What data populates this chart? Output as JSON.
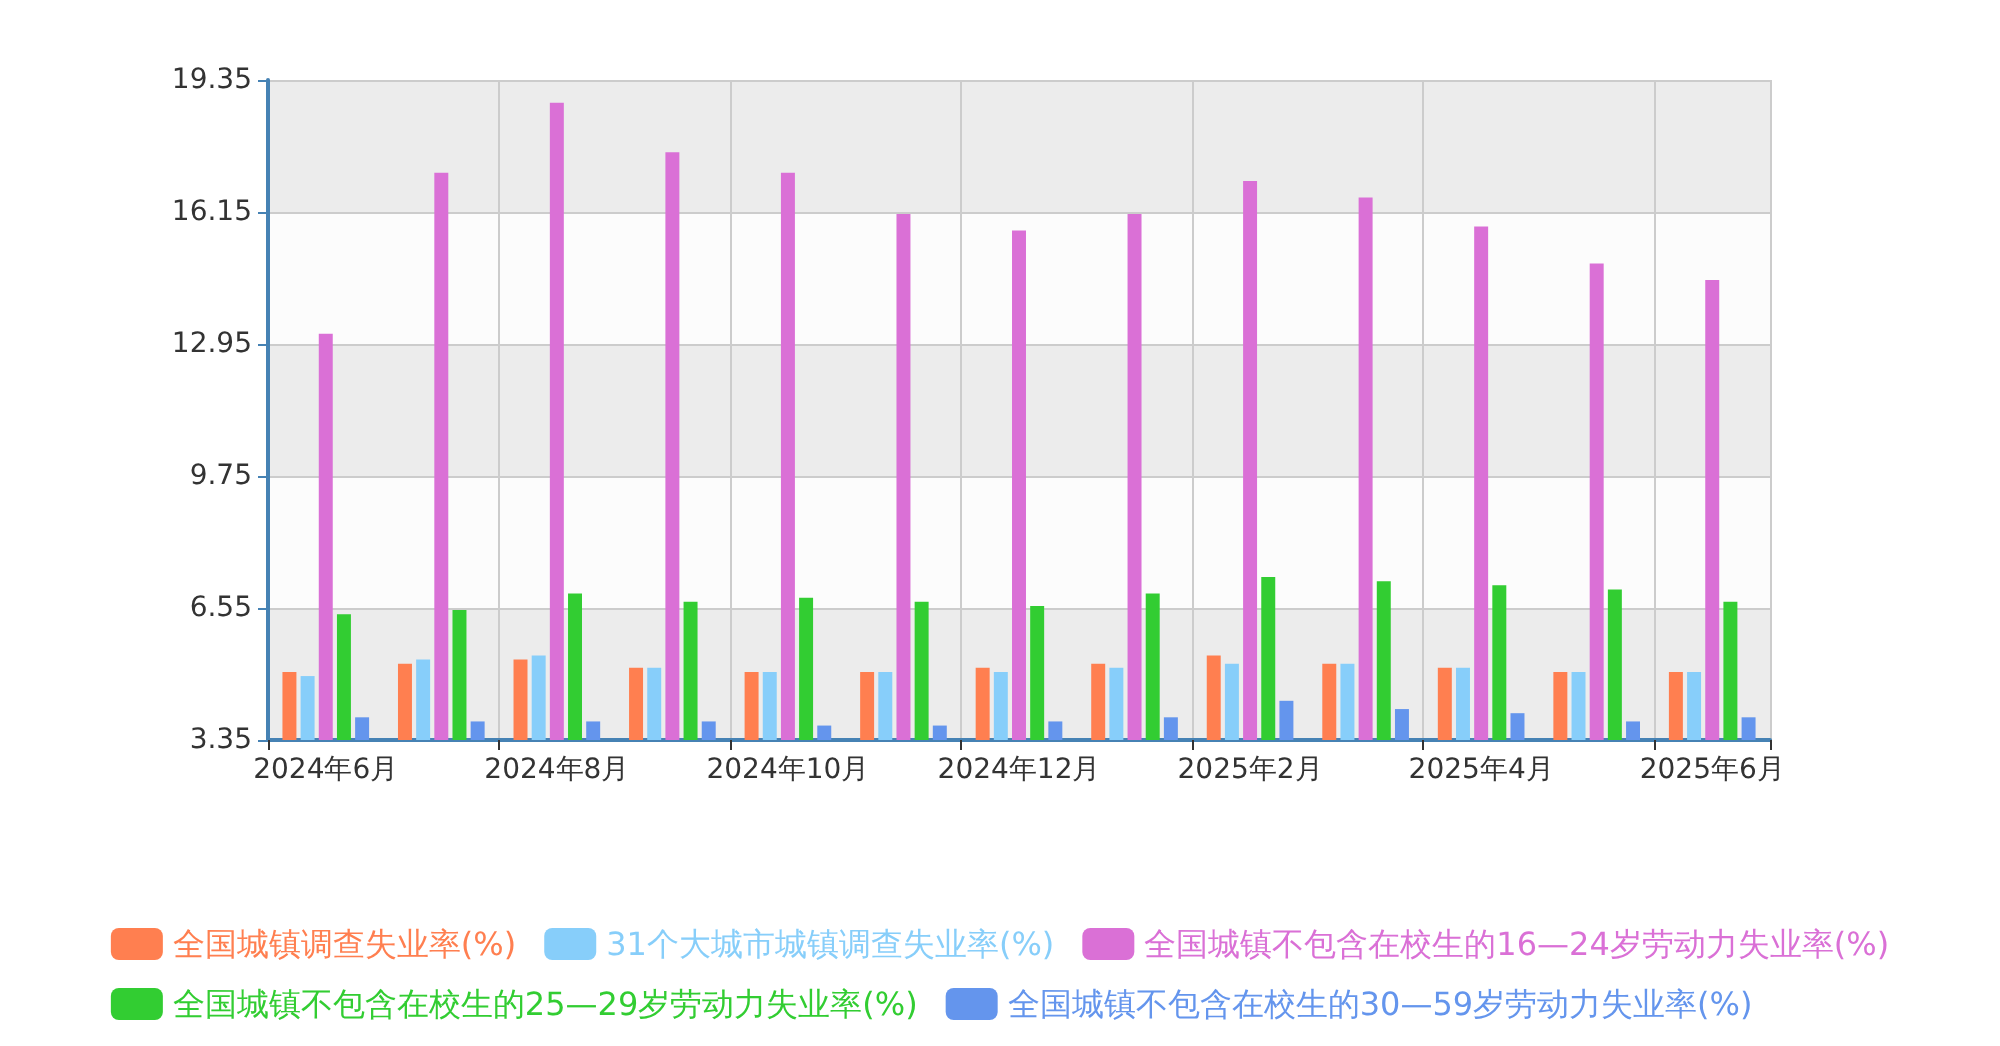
{
  "chart_data": {
    "type": "bar",
    "categories": [
      "2024年6月",
      null,
      "2024年8月",
      null,
      "2024年10月",
      null,
      "2024年12月",
      null,
      "2025年2月",
      null,
      "2025年4月",
      null,
      "2025年6月"
    ],
    "series": [
      {
        "name": "全国城镇调查失业率(%)",
        "color": "#ff7f50",
        "values": [
          5.0,
          5.2,
          5.3,
          5.1,
          5.0,
          5.0,
          5.1,
          5.2,
          5.4,
          5.2,
          5.1,
          5.0,
          5.0
        ]
      },
      {
        "name": "31个大城市城镇调查失业率(%)",
        "color": "#87cefa",
        "values": [
          4.9,
          5.3,
          5.4,
          5.1,
          5.0,
          5.0,
          5.0,
          5.1,
          5.2,
          5.2,
          5.1,
          5.0,
          5.0
        ]
      },
      {
        "name": "全国城镇不包含在校生的16—24岁劳动力失业率(%)",
        "color": "#da70d6",
        "values": [
          13.2,
          17.1,
          18.8,
          17.6,
          17.1,
          16.1,
          15.7,
          16.1,
          16.9,
          16.5,
          15.8,
          14.9,
          14.5
        ]
      },
      {
        "name": "全国城镇不包含在校生的25—29岁劳动力失业率(%)",
        "color": "#32cd32",
        "values": [
          6.4,
          6.5,
          6.9,
          6.7,
          6.8,
          6.7,
          6.6,
          6.9,
          7.3,
          7.2,
          7.1,
          7.0,
          6.7
        ]
      },
      {
        "name": "全国城镇不包含在校生的30—59岁劳动力失业率(%)",
        "color": "#6495ed",
        "values": [
          3.9,
          3.8,
          3.8,
          3.8,
          3.7,
          3.7,
          3.8,
          3.9,
          4.3,
          4.1,
          4.0,
          3.8,
          3.9
        ]
      }
    ],
    "ylim": [
      3.35,
      19.35
    ],
    "yticks": [
      3.35,
      6.55,
      9.75,
      12.95,
      16.15,
      19.35
    ],
    "grid": true,
    "legend": "bottom"
  }
}
